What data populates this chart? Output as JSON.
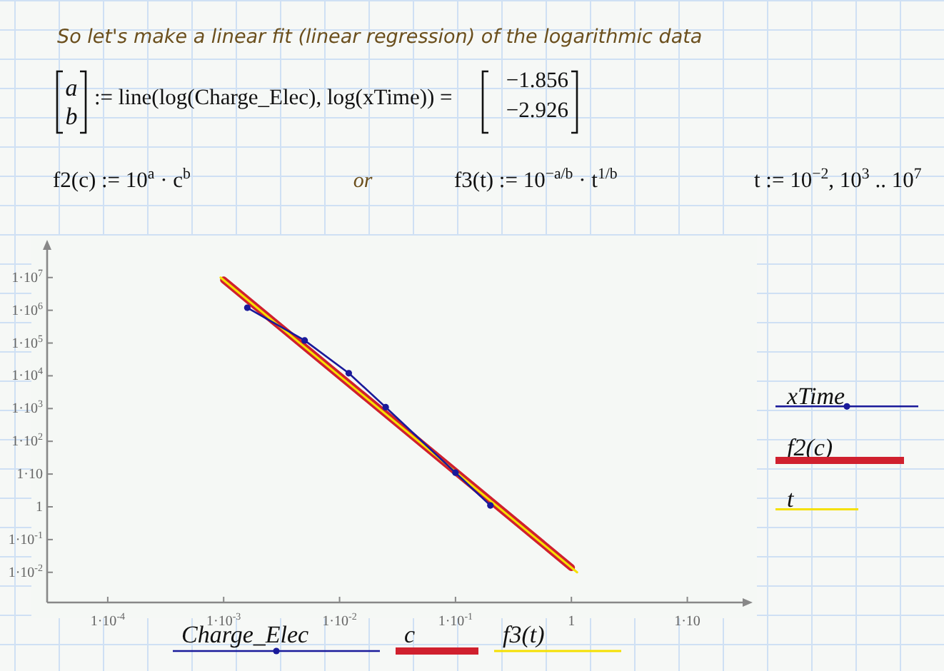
{
  "chart_data": {
    "type": "line",
    "title": "So let's make a linear fit (linear regression) of the logarithmic data",
    "log": "xy",
    "xlim": [
      3e-05,
      30
    ],
    "ylim": [
      0.0012,
      70000000
    ],
    "xticks": [
      {
        "value": 0.0001,
        "label": "1·10$^{-4}$"
      },
      {
        "value": 0.001,
        "label": "1·10$^{-3}$"
      },
      {
        "value": 0.01,
        "label": "1·10$^{-2}$"
      },
      {
        "value": 0.1,
        "label": "1·10$^{-1}$"
      },
      1,
      {
        "value": 10,
        "label": "1·10"
      }
    ],
    "yticks": [
      {
        "value": 0.01,
        "label": "1·10$^{-2}$"
      },
      {
        "value": 0.1,
        "label": "1·10$^{-1}$"
      },
      1,
      {
        "value": 10,
        "label": "1·10"
      },
      {
        "value": 100,
        "label": "1·10$^{2}$"
      },
      {
        "value": 1000,
        "label": "1·10$^{3}$"
      },
      {
        "value": 10000,
        "label": "1·10$^{4}$"
      },
      {
        "value": 100000,
        "label": "1·10$^{5}$"
      },
      {
        "value": 1000000,
        "label": "1·10$^{6}$"
      },
      {
        "value": 10000000,
        "label": "1·10$^{7}$"
      }
    ],
    "grid": false,
    "legend": "right",
    "series": [
      {
        "name": "xTime",
        "color": "#1a1a9a",
        "marker": "circle",
        "x": [
          0.0016,
          0.005,
          0.012,
          0.025,
          0.1,
          0.2
        ],
        "values": [
          1200000,
          120000,
          12000,
          1100,
          11,
          1.1
        ]
      },
      {
        "name": "f2(c)",
        "color": "#d0202e",
        "marker": "none",
        "x": [
          0.001,
          1
        ],
        "values": [
          8400000,
          0.014
        ]
      },
      {
        "name": "t",
        "color": "#f5e000",
        "marker": "none",
        "x": [
          1.12,
          0.00094
        ],
        "values": [
          0.01,
          10000000
        ]
      }
    ],
    "annotations": [
      "a",
      "b",
      ":= line(log(Charge_Elec), log(xTime)) =",
      "−1.856",
      "−2.926",
      "f2(c) := 10$^{a}$ · c$^{b}$",
      "or",
      "f3(t) := 10$^{−a/b}$ · t$^{1/b}$",
      "t := 10$^{−2}$, 10$^{3}$ .. 10$^{7}$",
      "Charge_Elec",
      "c",
      "f3(t)"
    ]
  }
}
